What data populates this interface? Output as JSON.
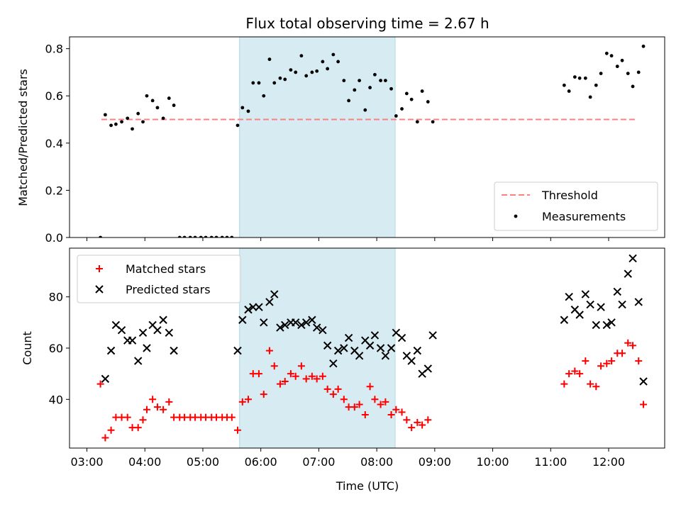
{
  "chart_data": {
    "title": "Flux total observing time = 2.67 h",
    "xlabel": "Time (UTC)",
    "x_unit": "hours UTC",
    "xlim": [
      "02:42",
      "12:58"
    ],
    "xticks": [
      "03:00",
      "04:00",
      "05:00",
      "06:00",
      "07:00",
      "08:00",
      "09:00",
      "10:00",
      "11:00",
      "12:00"
    ],
    "highlight_span": {
      "start": "05:38",
      "end": "08:19",
      "color": "#add8e6"
    },
    "panels": [
      {
        "name": "ratio",
        "type": "scatter",
        "ylabel": "Matched/Predicted stars",
        "ylim": [
          0,
          0.85
        ],
        "yticks": [
          "0.0",
          "0.2",
          "0.4",
          "0.6",
          "0.8"
        ],
        "legend": {
          "position": "lower-right",
          "entries": [
            "Threshold",
            "Measurements"
          ]
        },
        "threshold": {
          "name": "Threshold",
          "value": 0.5,
          "x_start": "03:15",
          "x_end": "12:30",
          "color": "#ff7f7f",
          "style": "dashed"
        },
        "series": [
          {
            "name": "Measurements",
            "color": "#000000",
            "marker": "dot",
            "points": [
              [
                "03:14",
                0.0
              ],
              [
                "03:19",
                0.52
              ],
              [
                "03:25",
                0.475
              ],
              [
                "03:30",
                0.48
              ],
              [
                "03:36",
                0.49
              ],
              [
                "03:42",
                0.505
              ],
              [
                "03:47",
                0.46
              ],
              [
                "03:53",
                0.525
              ],
              [
                "03:58",
                0.49
              ],
              [
                "04:02",
                0.6
              ],
              [
                "04:08",
                0.58
              ],
              [
                "04:13",
                0.55
              ],
              [
                "04:19",
                0.505
              ],
              [
                "04:25",
                0.59
              ],
              [
                "04:30",
                0.56
              ],
              [
                "04:36",
                0.0
              ],
              [
                "04:41",
                0.0
              ],
              [
                "04:47",
                0.0
              ],
              [
                "04:52",
                0.0
              ],
              [
                "04:58",
                0.0
              ],
              [
                "05:03",
                0.0
              ],
              [
                "05:09",
                0.0
              ],
              [
                "05:14",
                0.0
              ],
              [
                "05:20",
                0.0
              ],
              [
                "05:25",
                0.0
              ],
              [
                "05:30",
                0.0
              ],
              [
                "05:36",
                0.475
              ],
              [
                "05:41",
                0.55
              ],
              [
                "05:47",
                0.535
              ],
              [
                "05:52",
                0.655
              ],
              [
                "05:58",
                0.655
              ],
              [
                "06:03",
                0.6
              ],
              [
                "06:09",
                0.755
              ],
              [
                "06:14",
                0.655
              ],
              [
                "06:20",
                0.675
              ],
              [
                "06:25",
                0.67
              ],
              [
                "06:31",
                0.71
              ],
              [
                "06:36",
                0.7
              ],
              [
                "06:42",
                0.77
              ],
              [
                "06:47",
                0.685
              ],
              [
                "06:53",
                0.7
              ],
              [
                "06:58",
                0.705
              ],
              [
                "07:04",
                0.745
              ],
              [
                "07:09",
                0.715
              ],
              [
                "07:15",
                0.775
              ],
              [
                "07:20",
                0.745
              ],
              [
                "07:26",
                0.665
              ],
              [
                "07:31",
                0.58
              ],
              [
                "07:37",
                0.625
              ],
              [
                "07:42",
                0.665
              ],
              [
                "07:48",
                0.54
              ],
              [
                "07:53",
                0.635
              ],
              [
                "07:58",
                0.69
              ],
              [
                "08:04",
                0.665
              ],
              [
                "08:09",
                0.665
              ],
              [
                "08:15",
                0.63
              ],
              [
                "08:20",
                0.515
              ],
              [
                "08:26",
                0.545
              ],
              [
                "08:31",
                0.61
              ],
              [
                "08:36",
                0.585
              ],
              [
                "08:42",
                0.49
              ],
              [
                "08:47",
                0.62
              ],
              [
                "08:53",
                0.575
              ],
              [
                "08:58",
                0.49
              ],
              [
                "11:14",
                0.645
              ],
              [
                "11:19",
                0.62
              ],
              [
                "11:25",
                0.68
              ],
              [
                "11:30",
                0.675
              ],
              [
                "11:36",
                0.675
              ],
              [
                "11:41",
                0.595
              ],
              [
                "11:47",
                0.645
              ],
              [
                "11:52",
                0.695
              ],
              [
                "11:58",
                0.78
              ],
              [
                "12:03",
                0.77
              ],
              [
                "12:09",
                0.725
              ],
              [
                "12:14",
                0.75
              ],
              [
                "12:20",
                0.695
              ],
              [
                "12:25",
                0.64
              ],
              [
                "12:31",
                0.7
              ],
              [
                "12:36",
                0.81
              ]
            ]
          }
        ]
      },
      {
        "name": "count",
        "type": "scatter",
        "ylabel": "Count",
        "ylim": [
          21,
          99
        ],
        "yticks": [
          "40",
          "60",
          "80"
        ],
        "legend": {
          "position": "upper-left",
          "entries": [
            "Matched stars",
            "Predicted stars"
          ]
        },
        "series": [
          {
            "name": "Matched stars",
            "color": "#ff0000",
            "marker": "plus",
            "points": [
              [
                "03:14",
                46
              ],
              [
                "03:19",
                25
              ],
              [
                "03:25",
                28
              ],
              [
                "03:30",
                33
              ],
              [
                "03:36",
                33
              ],
              [
                "03:42",
                33
              ],
              [
                "03:47",
                29
              ],
              [
                "03:53",
                29
              ],
              [
                "03:58",
                32
              ],
              [
                "04:02",
                36
              ],
              [
                "04:08",
                40
              ],
              [
                "04:13",
                37
              ],
              [
                "04:19",
                36
              ],
              [
                "04:25",
                39
              ],
              [
                "04:30",
                33
              ],
              [
                "04:36",
                33
              ],
              [
                "04:41",
                33
              ],
              [
                "04:47",
                33
              ],
              [
                "04:52",
                33
              ],
              [
                "04:58",
                33
              ],
              [
                "05:03",
                33
              ],
              [
                "05:09",
                33
              ],
              [
                "05:14",
                33
              ],
              [
                "05:20",
                33
              ],
              [
                "05:25",
                33
              ],
              [
                "05:30",
                33
              ],
              [
                "05:36",
                28
              ],
              [
                "05:41",
                39
              ],
              [
                "05:47",
                40
              ],
              [
                "05:52",
                50
              ],
              [
                "05:58",
                50
              ],
              [
                "06:03",
                42
              ],
              [
                "06:09",
                59
              ],
              [
                "06:14",
                53
              ],
              [
                "06:20",
                46
              ],
              [
                "06:25",
                47
              ],
              [
                "06:31",
                50
              ],
              [
                "06:36",
                49
              ],
              [
                "06:42",
                53
              ],
              [
                "06:47",
                48
              ],
              [
                "06:53",
                49
              ],
              [
                "06:58",
                48
              ],
              [
                "07:04",
                49
              ],
              [
                "07:09",
                44
              ],
              [
                "07:15",
                42
              ],
              [
                "07:20",
                44
              ],
              [
                "07:26",
                40
              ],
              [
                "07:31",
                37
              ],
              [
                "07:37",
                37
              ],
              [
                "07:42",
                38
              ],
              [
                "07:48",
                34
              ],
              [
                "07:53",
                45
              ],
              [
                "07:58",
                40
              ],
              [
                "08:04",
                38
              ],
              [
                "08:09",
                39
              ],
              [
                "08:15",
                34
              ],
              [
                "08:20",
                36
              ],
              [
                "08:26",
                35
              ],
              [
                "08:31",
                32
              ],
              [
                "08:36",
                29
              ],
              [
                "08:42",
                31
              ],
              [
                "08:47",
                30
              ],
              [
                "08:53",
                32
              ],
              [
                "11:14",
                46
              ],
              [
                "11:19",
                50
              ],
              [
                "11:25",
                51
              ],
              [
                "11:30",
                50
              ],
              [
                "11:36",
                55
              ],
              [
                "11:41",
                46
              ],
              [
                "11:47",
                45
              ],
              [
                "11:52",
                53
              ],
              [
                "11:58",
                54
              ],
              [
                "12:03",
                55
              ],
              [
                "12:09",
                58
              ],
              [
                "12:14",
                58
              ],
              [
                "12:20",
                62
              ],
              [
                "12:25",
                61
              ],
              [
                "12:31",
                55
              ],
              [
                "12:36",
                38
              ]
            ]
          },
          {
            "name": "Predicted stars",
            "color": "#000000",
            "marker": "x",
            "points": [
              [
                "03:19",
                48
              ],
              [
                "03:25",
                59
              ],
              [
                "03:30",
                69
              ],
              [
                "03:36",
                67
              ],
              [
                "03:42",
                63
              ],
              [
                "03:47",
                63
              ],
              [
                "03:53",
                55
              ],
              [
                "03:58",
                66
              ],
              [
                "04:02",
                60
              ],
              [
                "04:08",
                69
              ],
              [
                "04:13",
                67
              ],
              [
                "04:19",
                71
              ],
              [
                "04:25",
                66
              ],
              [
                "04:30",
                59
              ],
              [
                "05:36",
                59
              ],
              [
                "05:41",
                71
              ],
              [
                "05:47",
                75
              ],
              [
                "05:52",
                76
              ],
              [
                "05:58",
                76
              ],
              [
                "06:03",
                70
              ],
              [
                "06:09",
                78
              ],
              [
                "06:14",
                81
              ],
              [
                "06:20",
                68
              ],
              [
                "06:25",
                69
              ],
              [
                "06:31",
                70
              ],
              [
                "06:36",
                70
              ],
              [
                "06:42",
                69
              ],
              [
                "06:47",
                70
              ],
              [
                "06:53",
                71
              ],
              [
                "06:58",
                68
              ],
              [
                "07:04",
                67
              ],
              [
                "07:09",
                61
              ],
              [
                "07:15",
                54
              ],
              [
                "07:20",
                59
              ],
              [
                "07:26",
                60
              ],
              [
                "07:31",
                64
              ],
              [
                "07:37",
                59
              ],
              [
                "07:42",
                57
              ],
              [
                "07:48",
                63
              ],
              [
                "07:53",
                61
              ],
              [
                "07:58",
                65
              ],
              [
                "08:04",
                60
              ],
              [
                "08:09",
                57
              ],
              [
                "08:15",
                60
              ],
              [
                "08:20",
                66
              ],
              [
                "08:26",
                64
              ],
              [
                "08:31",
                57
              ],
              [
                "08:36",
                55
              ],
              [
                "08:42",
                59
              ],
              [
                "08:47",
                50
              ],
              [
                "08:53",
                52
              ],
              [
                "08:58",
                65
              ],
              [
                "11:14",
                71
              ],
              [
                "11:19",
                80
              ],
              [
                "11:25",
                75
              ],
              [
                "11:30",
                73
              ],
              [
                "11:36",
                81
              ],
              [
                "11:41",
                77
              ],
              [
                "11:47",
                69
              ],
              [
                "11:52",
                76
              ],
              [
                "11:58",
                69
              ],
              [
                "12:03",
                70
              ],
              [
                "12:09",
                82
              ],
              [
                "12:14",
                77
              ],
              [
                "12:20",
                89
              ],
              [
                "12:25",
                95
              ],
              [
                "12:31",
                78
              ],
              [
                "12:36",
                47
              ]
            ]
          }
        ]
      }
    ]
  }
}
